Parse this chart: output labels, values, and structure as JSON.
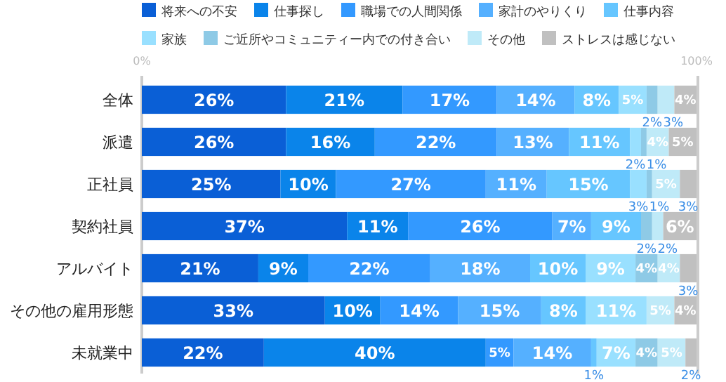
{
  "chart_data": {
    "type": "bar",
    "orientation": "horizontal",
    "stacked": true,
    "legend": "top",
    "categories": [
      "全体",
      "派遣",
      "正社員",
      "契約社員",
      "アルバイト",
      "その他の雇用形態",
      "未就業中"
    ],
    "xlim": [
      0,
      100
    ],
    "xticks": [
      {
        "value": 0,
        "label": "0%"
      },
      {
        "value": 100,
        "label": "100%"
      }
    ],
    "series": [
      {
        "name": "将来への不安",
        "color": "#0a5fd6",
        "values": [
          26,
          26,
          25,
          37,
          21,
          33,
          22
        ],
        "value_labels": [
          "26%",
          "26%",
          "25%",
          "37%",
          "21%",
          "33%",
          "22%"
        ]
      },
      {
        "name": "仕事探し",
        "color": "#0a84ea",
        "values": [
          21,
          16,
          10,
          11,
          9,
          10,
          40
        ],
        "value_labels": [
          "21%",
          "16%",
          "10%",
          "11%",
          "9%",
          "10%",
          "40%"
        ]
      },
      {
        "name": "職場での人間関係",
        "color": "#3399ff",
        "values": [
          17,
          22,
          27,
          26,
          22,
          14,
          5
        ],
        "value_labels": [
          "17%",
          "22%",
          "27%",
          "26%",
          "22%",
          "14%",
          "5%"
        ]
      },
      {
        "name": "家計のやりくり",
        "color": "#55b0ff",
        "values": [
          14,
          13,
          11,
          7,
          18,
          15,
          14
        ],
        "value_labels": [
          "14%",
          "13%",
          "11%",
          "7%",
          "18%",
          "15%",
          "14%"
        ]
      },
      {
        "name": "仕事内容",
        "color": "#66c6ff",
        "values": [
          8,
          11,
          15,
          9,
          10,
          8,
          1
        ],
        "value_labels": [
          "8%",
          "11%",
          "15%",
          "9%",
          "10%",
          "8%",
          "1%"
        ]
      },
      {
        "name": "家族",
        "color": "#99e0ff",
        "values": [
          5,
          2,
          3,
          null,
          9,
          11,
          7
        ],
        "value_labels": [
          "5%",
          "2%",
          "3%",
          null,
          "9%",
          "11%",
          "7%"
        ]
      },
      {
        "name": "ご近所やコミュニティー内での付き合い",
        "color": "#8ecae6",
        "values": [
          2,
          1,
          1,
          2,
          4,
          null,
          4
        ],
        "value_labels": [
          "2%",
          "1%",
          "1%",
          "2%",
          "4%",
          null,
          "4%"
        ]
      },
      {
        "name": "その他",
        "color": "#bfeaf8",
        "values": [
          3,
          4,
          5,
          2,
          4,
          5,
          5
        ],
        "value_labels": [
          "3%",
          "4%",
          "5%",
          "2%",
          "4%",
          "5%",
          "5%"
        ]
      },
      {
        "name": "ストレスは感じない",
        "color": "#c0c0c0",
        "values": [
          4,
          5,
          3,
          6,
          3,
          4,
          2
        ],
        "value_labels": [
          "4%",
          "5%",
          "3%",
          "6%",
          "3%",
          "4%",
          "2%"
        ]
      }
    ]
  }
}
